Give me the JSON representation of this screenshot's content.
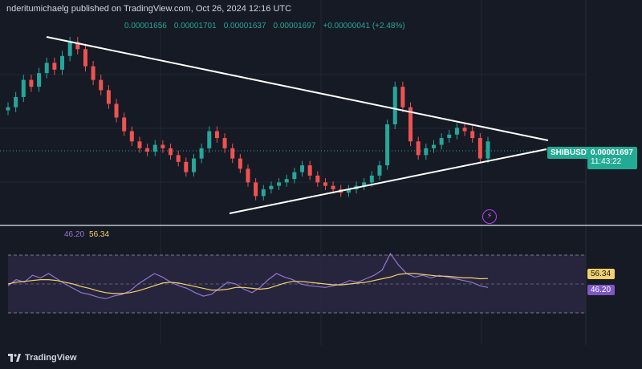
{
  "header": {
    "publisher_text": "nderitumichaelg published on TradingView.com, Oct 26, 2024 12:16 UTC"
  },
  "ohlc": {
    "open": "0.00001656",
    "high": "0.00001701",
    "low": "0.00001637",
    "close": "0.00001697",
    "change": "+0.00000041 (+2.48%)"
  },
  "price_scale": {
    "symbol": "SHIBUSDT",
    "price": "0.00001697",
    "countdown": "11:43:22"
  },
  "rsi": {
    "value_label": "46.20",
    "ma_label": "56.34"
  },
  "footer": {
    "brand": "TradingView"
  },
  "icons": {
    "alert": "lightning-icon",
    "logo": "tradingview-logo-icon"
  },
  "colors": {
    "up": "#26a69a",
    "down": "#ef5350",
    "rsi_line": "#9575cd",
    "rsi_ma": "#f2d06b",
    "trendline": "#ffffff"
  },
  "chart_data": [
    {
      "type": "candlestick",
      "symbol": "SHIBUSDT",
      "last_price": 1.697e-05,
      "trendlines": [
        {
          "name": "descending resistance"
        },
        {
          "name": "ascending support"
        }
      ],
      "series": [
        {
          "name": "close",
          "values": [
            1.8e-05,
            1.83e-05,
            1.88e-05,
            1.86e-05,
            1.9e-05,
            1.93e-05,
            1.91e-05,
            1.95e-05,
            1.99e-05,
            1.97e-05,
            1.92e-05,
            1.88e-05,
            1.85e-05,
            1.81e-05,
            1.77e-05,
            1.73e-05,
            1.7e-05,
            1.68e-05,
            1.67e-05,
            1.69e-05,
            1.68e-05,
            1.66e-05,
            1.64e-05,
            1.61e-05,
            1.65e-05,
            1.68e-05,
            1.73e-05,
            1.71e-05,
            1.68e-05,
            1.65e-05,
            1.62e-05,
            1.58e-05,
            1.54e-05,
            1.56e-05,
            1.57e-05,
            1.58e-05,
            1.59e-05,
            1.61e-05,
            1.63e-05,
            1.6e-05,
            1.58e-05,
            1.57e-05,
            1.56e-05,
            1.55e-05,
            1.56e-05,
            1.57e-05,
            1.58e-05,
            1.6e-05,
            1.63e-05,
            1.75e-05,
            1.86e-05,
            1.8e-05,
            1.7e-05,
            1.66e-05,
            1.68e-05,
            1.69e-05,
            1.71e-05,
            1.72e-05,
            1.74e-05,
            1.73e-05,
            1.71e-05,
            1.65e-05,
            1.7e-05
          ]
        }
      ]
    },
    {
      "type": "line",
      "name": "RSI",
      "levels": [
        70,
        50,
        30
      ],
      "series": [
        {
          "name": "RSI",
          "last": 46.2,
          "values": [
            48,
            55,
            52,
            60,
            57,
            62,
            56,
            50,
            45,
            40,
            38,
            35,
            33,
            36,
            38,
            42,
            50,
            56,
            62,
            58,
            52,
            48,
            45,
            40,
            36,
            38,
            45,
            52,
            50,
            44,
            40,
            46,
            55,
            62,
            58,
            55,
            50,
            48,
            47,
            46,
            48,
            50,
            54,
            52,
            56,
            60,
            66,
            85,
            72,
            62,
            58,
            60,
            57,
            60,
            58,
            56,
            54,
            52,
            48,
            46
          ]
        },
        {
          "name": "RSI-based MA",
          "last": 56.34,
          "values": [
            50,
            52,
            53,
            54,
            55,
            55,
            54,
            52,
            50,
            47,
            45,
            42,
            40,
            39,
            39,
            40,
            42,
            45,
            48,
            51,
            52,
            51,
            49,
            47,
            45,
            43,
            43,
            44,
            46,
            46,
            45,
            44,
            45,
            48,
            51,
            53,
            53,
            52,
            51,
            50,
            49,
            49,
            50,
            51,
            52,
            54,
            56,
            58,
            61,
            62,
            62,
            61,
            60,
            59,
            59,
            58,
            57,
            57,
            56,
            56.34
          ]
        }
      ]
    }
  ]
}
